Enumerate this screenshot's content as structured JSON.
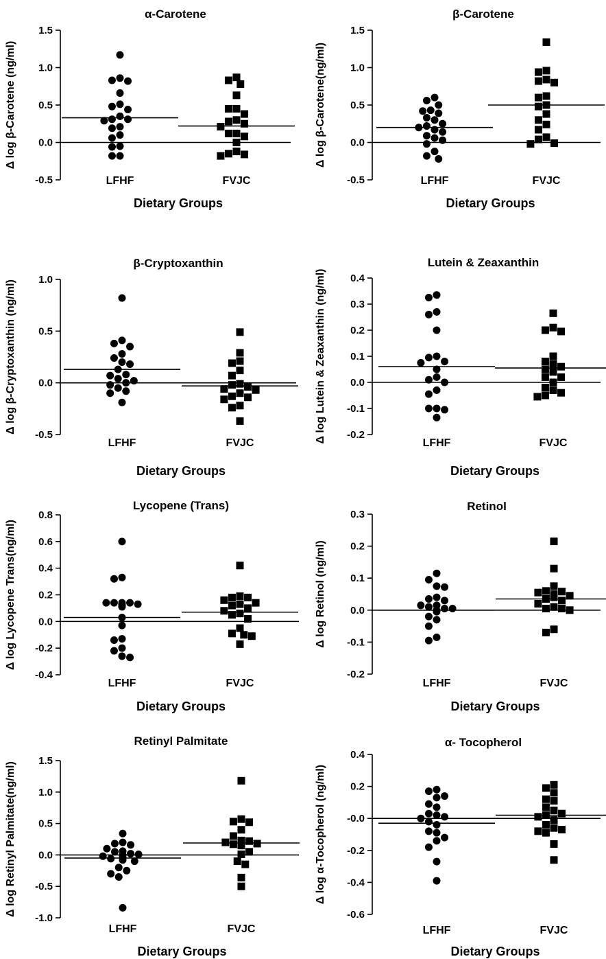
{
  "figure": {
    "xlabel": "Dietary Groups",
    "categories": [
      "LFHF",
      "FVJC"
    ],
    "series_markers": {
      "LFHF": "circle",
      "FVJC": "square"
    }
  },
  "chart_data": [
    {
      "type": "scatter",
      "title": "α-Carotene",
      "ylabel": "Δ log β-Carotene (ng/ml)",
      "xlabel": "Dietary Groups",
      "categories": [
        "LFHF",
        "FVJC"
      ],
      "ylim": [
        -0.5,
        1.5
      ],
      "yticks": [
        "-0.5",
        "0.0",
        "0.5",
        "1.0",
        "1.5"
      ],
      "yticks_values": [
        -0.5,
        0,
        0.5,
        1.0,
        1.5
      ],
      "series": [
        {
          "name": "LFHF",
          "marker": "circle",
          "mean": 0.33,
          "values": [
            1.17,
            0.86,
            0.83,
            0.82,
            0.66,
            0.51,
            0.48,
            0.44,
            0.35,
            0.31,
            0.31,
            0.29,
            0.21,
            0.19,
            0.1,
            0.06,
            -0.05,
            -0.06,
            -0.18,
            -0.18
          ]
        },
        {
          "name": "FVJC",
          "marker": "square",
          "mean": 0.22,
          "values": [
            0.87,
            0.83,
            0.78,
            0.63,
            0.45,
            0.45,
            0.38,
            0.3,
            0.28,
            0.25,
            0.21,
            0.12,
            0.12,
            0.08,
            0.0,
            -0.12,
            -0.15,
            -0.16,
            -0.18
          ]
        }
      ]
    },
    {
      "type": "scatter",
      "title": "β-Carotene",
      "ylabel": "Δ log β-Carotene(ng/ml)",
      "xlabel": "Dietary Groups",
      "categories": [
        "LFHF",
        "FVJC"
      ],
      "ylim": [
        -0.5,
        1.5
      ],
      "yticks": [
        "-0.5",
        "0.0",
        "0.5",
        "1.0",
        "1.5"
      ],
      "yticks_values": [
        -0.5,
        0,
        0.5,
        1.0,
        1.5
      ],
      "series": [
        {
          "name": "LFHF",
          "marker": "circle",
          "mean": 0.2,
          "values": [
            0.6,
            0.56,
            0.5,
            0.43,
            0.42,
            0.39,
            0.33,
            0.3,
            0.25,
            0.22,
            0.2,
            0.17,
            0.14,
            0.09,
            0.06,
            0.03,
            -0.02,
            -0.12,
            -0.18,
            -0.22
          ]
        },
        {
          "name": "FVJC",
          "marker": "square",
          "mean": 0.5,
          "values": [
            1.34,
            0.96,
            0.94,
            0.84,
            0.82,
            0.8,
            0.62,
            0.6,
            0.5,
            0.48,
            0.38,
            0.3,
            0.24,
            0.17,
            0.07,
            0.04,
            -0.01,
            -0.02
          ]
        }
      ]
    },
    {
      "type": "scatter",
      "title": "β-Cryptoxanthin",
      "ylabel": "Δ log β-Cryptoxanthin (ng/ml)",
      "xlabel": "Dietary Groups",
      "categories": [
        "LFHF",
        "FVJC"
      ],
      "ylim": [
        -0.5,
        1.0
      ],
      "yticks": [
        "-0.5",
        "0.0",
        "0.5",
        "1.0"
      ],
      "yticks_values": [
        -0.5,
        0,
        0.5,
        1.0
      ],
      "series": [
        {
          "name": "LFHF",
          "marker": "circle",
          "mean": 0.13,
          "values": [
            0.82,
            0.41,
            0.38,
            0.35,
            0.28,
            0.24,
            0.2,
            0.18,
            0.13,
            0.08,
            0.07,
            0.04,
            0.02,
            0.0,
            -0.02,
            -0.05,
            -0.08,
            -0.1,
            -0.19
          ]
        },
        {
          "name": "FVJC",
          "marker": "square",
          "mean": -0.03,
          "values": [
            0.49,
            0.29,
            0.21,
            0.19,
            0.12,
            0.07,
            -0.01,
            -0.02,
            -0.04,
            -0.06,
            -0.07,
            -0.1,
            -0.13,
            -0.14,
            -0.16,
            -0.22,
            -0.24,
            -0.37
          ]
        }
      ]
    },
    {
      "type": "scatter",
      "title": "Lutein & Zeaxanthin",
      "ylabel": "Δ log Lutein & Zeaxanthin (ng/ml)",
      "xlabel": "Dietary Groups",
      "categories": [
        "LFHF",
        "FVJC"
      ],
      "ylim": [
        -0.2,
        0.4
      ],
      "yticks": [
        "-0.2",
        "-0.1",
        "0.0",
        "0.1",
        "0.2",
        "0.3",
        "0.4"
      ],
      "yticks_values": [
        -0.2,
        -0.1,
        0,
        0.1,
        0.2,
        0.3,
        0.4
      ],
      "series": [
        {
          "name": "LFHF",
          "marker": "circle",
          "mean": 0.06,
          "values": [
            0.335,
            0.325,
            0.27,
            0.26,
            0.2,
            0.1,
            0.095,
            0.08,
            0.075,
            0.05,
            0.02,
            0.01,
            0.0,
            -0.03,
            -0.045,
            -0.1,
            -0.1,
            -0.105,
            -0.135
          ]
        },
        {
          "name": "FVJC",
          "marker": "square",
          "mean": 0.055,
          "values": [
            0.265,
            0.21,
            0.2,
            0.195,
            0.1,
            0.08,
            0.07,
            0.06,
            0.05,
            0.04,
            0.02,
            0.02,
            0.0,
            -0.02,
            -0.03,
            -0.04,
            -0.05,
            -0.055
          ]
        }
      ]
    },
    {
      "type": "scatter",
      "title": "Lycopene (Trans)",
      "ylabel": "Δ log Lycopene Trans(ng/ml)",
      "xlabel": "Dietary Groups",
      "categories": [
        "LFHF",
        "FVJC"
      ],
      "ylim": [
        -0.4,
        0.8
      ],
      "yticks": [
        "-0.4",
        "-0.2",
        "0.0",
        "0.2",
        "0.4",
        "0.6",
        "0.8"
      ],
      "yticks_values": [
        -0.4,
        -0.2,
        0,
        0.2,
        0.4,
        0.6,
        0.8
      ],
      "series": [
        {
          "name": "LFHF",
          "marker": "circle",
          "mean": 0.03,
          "values": [
            0.6,
            0.33,
            0.32,
            0.14,
            0.14,
            0.14,
            0.14,
            0.13,
            0.13,
            0.12,
            0.11,
            0.03,
            -0.03,
            -0.13,
            -0.14,
            -0.2,
            -0.22,
            -0.26,
            -0.27
          ]
        },
        {
          "name": "FVJC",
          "marker": "square",
          "mean": 0.07,
          "values": [
            0.42,
            0.19,
            0.18,
            0.18,
            0.16,
            0.14,
            0.13,
            0.12,
            0.1,
            0.08,
            0.06,
            0.05,
            0.02,
            -0.05,
            -0.09,
            -0.1,
            -0.11,
            -0.17
          ]
        }
      ]
    },
    {
      "type": "scatter",
      "title": "Retinol",
      "ylabel": "Δ log Retinol (ng/ml)",
      "xlabel": "Dietary Groups",
      "categories": [
        "LFHF",
        "FVJC"
      ],
      "ylim": [
        -0.2,
        0.3
      ],
      "yticks": [
        "-0.2",
        "-0.1",
        "0.0",
        "0.1",
        "0.2",
        "0.3"
      ],
      "yticks_values": [
        -0.2,
        -0.1,
        0,
        0.1,
        0.2,
        0.3
      ],
      "series": [
        {
          "name": "LFHF",
          "marker": "circle",
          "mean": 0.0,
          "values": [
            0.115,
            0.095,
            0.075,
            0.072,
            0.04,
            0.035,
            0.03,
            0.015,
            0.015,
            0.01,
            0.005,
            0.005,
            0.0,
            -0.005,
            -0.02,
            -0.03,
            -0.05,
            -0.085,
            -0.095
          ]
        },
        {
          "name": "FVJC",
          "marker": "square",
          "mean": 0.035,
          "values": [
            0.215,
            0.13,
            0.075,
            0.06,
            0.058,
            0.055,
            0.05,
            0.045,
            0.04,
            0.035,
            0.03,
            0.02,
            0.01,
            0.005,
            0.005,
            0.0,
            -0.06,
            -0.07
          ]
        }
      ]
    },
    {
      "type": "scatter",
      "title": "Retinyl Palmitate",
      "ylabel": "Δ log Retinyl Palmitate(ng/ml)",
      "xlabel": "Dietary Groups",
      "categories": [
        "LFHF",
        "FVJC"
      ],
      "ylim": [
        -1.0,
        1.5
      ],
      "yticks": [
        "-1.0",
        "-0.5",
        "0.0",
        "0.5",
        "1.0",
        "1.5"
      ],
      "yticks_values": [
        -1.0,
        -0.5,
        0,
        0.5,
        1.0,
        1.5
      ],
      "series": [
        {
          "name": "LFHF",
          "marker": "circle",
          "mean": -0.05,
          "values": [
            0.34,
            0.2,
            0.18,
            0.16,
            0.1,
            0.06,
            0.05,
            0.02,
            0.01,
            0.0,
            -0.02,
            -0.04,
            -0.06,
            -0.08,
            -0.1,
            -0.2,
            -0.25,
            -0.3,
            -0.35,
            -0.84
          ]
        },
        {
          "name": "FVJC",
          "marker": "square",
          "mean": 0.19,
          "values": [
            1.18,
            0.57,
            0.53,
            0.52,
            0.4,
            0.3,
            0.23,
            0.22,
            0.2,
            0.18,
            0.17,
            0.15,
            0.05,
            0.01,
            -0.1,
            -0.15,
            -0.36,
            -0.5
          ]
        }
      ]
    },
    {
      "type": "scatter",
      "title": "α- Tocopherol",
      "ylabel": "Δ log α-Tocopherol (ng/ml)",
      "xlabel": "Dietary Groups",
      "categories": [
        "LFHF",
        "FVJC"
      ],
      "ylim": [
        -0.6,
        0.4
      ],
      "yticks": [
        "-0.6",
        "-0.4",
        "-0.2",
        "-0.0",
        "0.2",
        "0.4"
      ],
      "yticks_values": [
        -0.6,
        -0.4,
        -0.2,
        0.0,
        0.2,
        0.4
      ],
      "series": [
        {
          "name": "LFHF",
          "marker": "circle",
          "mean": -0.03,
          "values": [
            0.18,
            0.17,
            0.14,
            0.13,
            0.09,
            0.07,
            0.03,
            0.02,
            0.01,
            0.0,
            -0.02,
            -0.04,
            -0.08,
            -0.09,
            -0.12,
            -0.14,
            -0.18,
            -0.27,
            -0.39
          ]
        },
        {
          "name": "FVJC",
          "marker": "square",
          "mean": 0.02,
          "values": [
            0.21,
            0.19,
            0.16,
            0.12,
            0.11,
            0.07,
            0.05,
            0.03,
            0.02,
            0.01,
            -0.01,
            -0.04,
            -0.06,
            -0.07,
            -0.08,
            -0.09,
            -0.16,
            -0.26
          ]
        }
      ]
    }
  ]
}
